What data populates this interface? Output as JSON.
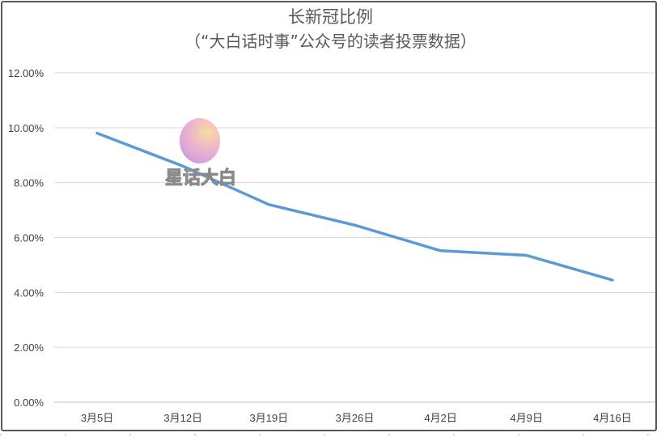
{
  "chart_data": {
    "type": "line",
    "title": "长新冠比例",
    "subtitle": "（“大白话时事”公众号的读者投票数据）",
    "categories": [
      "3月5日",
      "3月12日",
      "3月19日",
      "3月26日",
      "4月2日",
      "4月9日",
      "4月16日"
    ],
    "series": [
      {
        "values": [
          9.8,
          8.6,
          7.2,
          6.45,
          5.52,
          5.35,
          4.45
        ]
      }
    ],
    "y_ticks": [
      "0.00%",
      "2.00%",
      "4.00%",
      "6.00%",
      "8.00%",
      "10.00%",
      "12.00%"
    ],
    "ylim": [
      0,
      12
    ],
    "y_unit": "%",
    "grid": true,
    "legend": "none",
    "colors": {
      "line": "#5b9bd5",
      "grid": "#d9d9d9",
      "axis": "#bfbfbf",
      "text": "#595959"
    }
  },
  "watermark": {
    "text": "星话大白",
    "icon": "rabbit-logo-icon"
  }
}
